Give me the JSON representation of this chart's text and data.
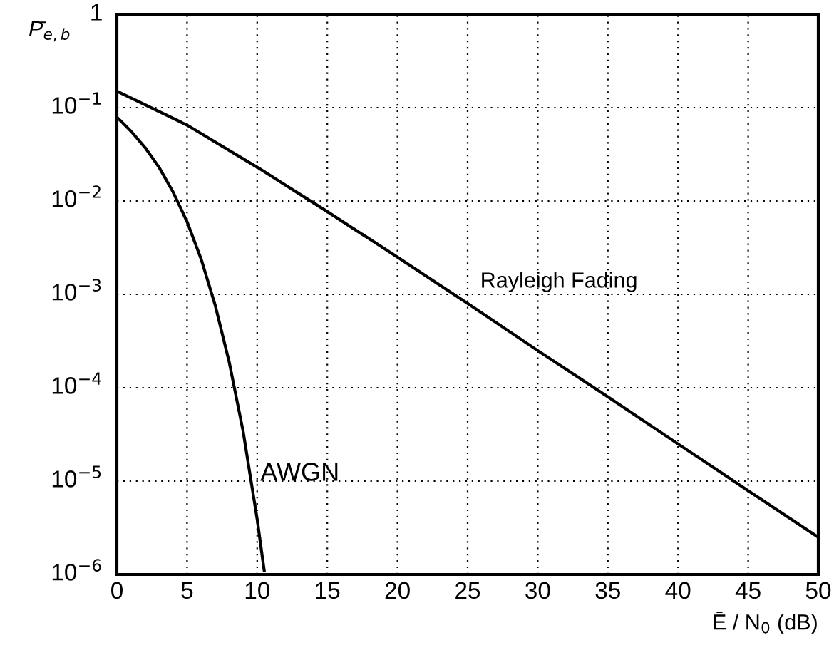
{
  "chart_data": {
    "type": "line",
    "xlabel": "Ē / N$_{0}$ (dB)",
    "ylabel": "P̄$_{e,b}$",
    "log": "y",
    "grid": true,
    "line_style": "solid",
    "marker": "none",
    "xlim": [
      0,
      50
    ],
    "xticks": [
      0,
      5,
      10,
      15,
      20,
      25,
      30,
      35,
      40,
      45,
      50
    ],
    "ylim": [
      1e-06,
      1
    ],
    "yticks": [
      {
        "value": 1e-06,
        "label": "10$^{−6}$"
      },
      {
        "value": 1e-05,
        "label": "10$^{−5}$"
      },
      {
        "value": 0.0001,
        "label": "10$^{−4}$"
      },
      {
        "value": 0.001,
        "label": "10$^{−3}$"
      },
      {
        "value": 0.01,
        "label": "10$^{−2}$"
      },
      {
        "value": 0.1,
        "label": "10$^{−1}$"
      },
      {
        "value": 1,
        "label": "1"
      }
    ],
    "series": [
      {
        "color": "#000000",
        "x": [
          0,
          5,
          10,
          15,
          20,
          25,
          30,
          35,
          40,
          45,
          50
        ],
        "values": [
          0.15,
          0.065,
          0.023,
          0.0077,
          0.0025,
          0.0008,
          0.00025,
          8e-05,
          2.5e-05,
          7.9e-06,
          2.5e-06
        ]
      },
      {
        "color": "#000000",
        "x": [
          0,
          1,
          2,
          3,
          4,
          5,
          6,
          7,
          8,
          9,
          10,
          10.5
        ],
        "values": [
          0.079,
          0.056,
          0.0375,
          0.023,
          0.0125,
          0.006,
          0.0024,
          0.00077,
          0.00019,
          3.4e-05,
          3.9e-06,
          1.1e-06
        ]
      }
    ],
    "annotations": [
      "Rayleigh Fading",
      "AWGN"
    ]
  }
}
